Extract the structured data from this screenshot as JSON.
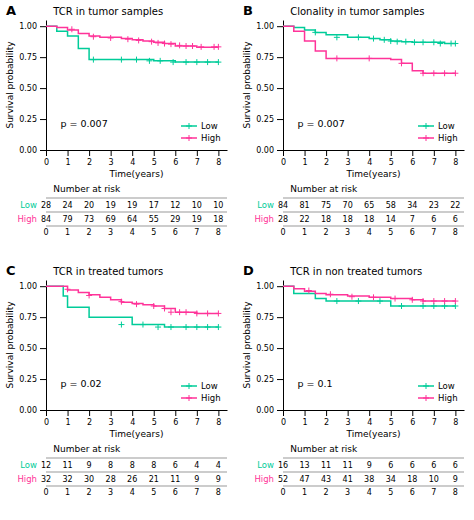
{
  "chart_data": [
    {
      "type": "step",
      "panel_label": "A",
      "title": "TCR in tumor samples",
      "annotations": [
        "p = 0.007"
      ],
      "xlabel": "Time(years)",
      "ylabel": "Survival probability",
      "xlim": [
        0,
        8.4
      ],
      "xticks": [
        0,
        1,
        2,
        3,
        4,
        5,
        6,
        7,
        8
      ],
      "ylim": [
        0.0,
        1.05
      ],
      "yticks": [
        {
          "value": 0.0,
          "label": "0.00"
        },
        {
          "value": 0.25,
          "label": "0.25"
        },
        {
          "value": 0.5,
          "label": "0.50"
        },
        {
          "value": 0.75,
          "label": "0.75"
        },
        {
          "value": 1.0,
          "label": "1.00"
        }
      ],
      "grid": false,
      "legend": "lower right",
      "series": [
        {
          "name": "Low",
          "color": "#00CC99",
          "marker": "plus",
          "x": [
            0,
            0.5,
            1.0,
            1.5,
            2.0,
            3.0,
            4.0,
            5.0,
            5.5,
            6.0,
            7.0,
            8.0
          ],
          "values": [
            1.0,
            0.96,
            0.92,
            0.82,
            0.73,
            0.73,
            0.73,
            0.72,
            0.72,
            0.71,
            0.71,
            0.71
          ],
          "censor_x": [
            2.2,
            3.5,
            4.2,
            4.8,
            5.3,
            5.9,
            6.5,
            7.0,
            7.5,
            8.0
          ],
          "censor_values": [
            0.73,
            0.73,
            0.73,
            0.72,
            0.72,
            0.71,
            0.71,
            0.71,
            0.71,
            0.71
          ]
        },
        {
          "name": "High",
          "color": "#FF3399",
          "marker": "plus",
          "x": [
            0,
            0.5,
            1.0,
            1.5,
            2.0,
            2.5,
            3.5,
            4.0,
            4.5,
            5.0,
            5.5,
            6.0,
            6.5,
            7.0,
            7.5,
            8.0
          ],
          "values": [
            1.0,
            0.99,
            0.97,
            0.94,
            0.92,
            0.91,
            0.9,
            0.89,
            0.88,
            0.87,
            0.86,
            0.84,
            0.84,
            0.83,
            0.83,
            0.83
          ],
          "censor_x": [
            1.2,
            2.2,
            3.0,
            3.8,
            4.3,
            4.9,
            5.2,
            5.5,
            5.8,
            6.2,
            6.5,
            6.8,
            7.2,
            7.8,
            8.0
          ],
          "censor_values": [
            0.975,
            0.915,
            0.905,
            0.895,
            0.885,
            0.875,
            0.865,
            0.86,
            0.855,
            0.845,
            0.84,
            0.84,
            0.833,
            0.833,
            0.833
          ]
        }
      ],
      "risk_table": {
        "title": "Number at risk",
        "x": [
          0,
          1,
          2,
          3,
          4,
          5,
          6,
          7,
          8
        ],
        "rows": [
          {
            "name": "Low",
            "color": "#00CC99",
            "values": [
              28,
              24,
              20,
              19,
              19,
              17,
              12,
              10,
              10
            ]
          },
          {
            "name": "High",
            "color": "#FF3399",
            "values": [
              84,
              79,
              73,
              69,
              64,
              55,
              29,
              19,
              18
            ]
          }
        ]
      }
    },
    {
      "type": "step",
      "panel_label": "B",
      "title": "Clonality in tumor samples",
      "annotations": [
        "p = 0.007"
      ],
      "xlabel": "Time(years)",
      "ylabel": "Survival probability",
      "xlim": [
        0,
        8.4
      ],
      "xticks": [
        0,
        1,
        2,
        3,
        4,
        5,
        6,
        7,
        8
      ],
      "ylim": [
        0.0,
        1.05
      ],
      "yticks": [
        {
          "value": 0.0,
          "label": "0.00"
        },
        {
          "value": 0.25,
          "label": "0.25"
        },
        {
          "value": 0.5,
          "label": "0.50"
        },
        {
          "value": 0.75,
          "label": "0.75"
        },
        {
          "value": 1.0,
          "label": "1.00"
        }
      ],
      "grid": false,
      "legend": "lower right",
      "series": [
        {
          "name": "Low",
          "color": "#00CC99",
          "marker": "plus",
          "x": [
            0,
            0.5,
            1.0,
            1.5,
            2.0,
            3.0,
            4.0,
            4.5,
            5.0,
            5.5,
            6.0,
            7.0,
            7.5,
            8.0
          ],
          "values": [
            1.0,
            0.99,
            0.97,
            0.95,
            0.93,
            0.91,
            0.9,
            0.89,
            0.88,
            0.875,
            0.87,
            0.87,
            0.86,
            0.86
          ],
          "censor_x": [
            1.5,
            2.5,
            3.5,
            4.2,
            4.7,
            5.0,
            5.3,
            5.7,
            6.1,
            6.5,
            7.0,
            7.3,
            7.8,
            8.0
          ],
          "censor_values": [
            0.95,
            0.91,
            0.91,
            0.9,
            0.89,
            0.88,
            0.875,
            0.875,
            0.87,
            0.87,
            0.87,
            0.86,
            0.86,
            0.86
          ]
        },
        {
          "name": "High",
          "color": "#FF3399",
          "marker": "plus",
          "x": [
            0,
            0.5,
            1.0,
            1.5,
            2.0,
            2.5,
            3.5,
            4.5,
            5.0,
            5.5,
            6.0,
            6.5,
            7.0,
            7.5,
            8.0
          ],
          "values": [
            1.0,
            0.96,
            0.88,
            0.8,
            0.74,
            0.74,
            0.74,
            0.74,
            0.73,
            0.7,
            0.64,
            0.62,
            0.62,
            0.62,
            0.62
          ],
          "censor_x": [
            2.5,
            4.0,
            5.5,
            6.5,
            7.0,
            7.5,
            8.0
          ],
          "censor_values": [
            0.74,
            0.74,
            0.7,
            0.62,
            0.62,
            0.62,
            0.62
          ]
        }
      ],
      "risk_table": {
        "title": "Number at risk",
        "x": [
          0,
          1,
          2,
          3,
          4,
          5,
          6,
          7,
          8
        ],
        "rows": [
          {
            "name": "Low",
            "color": "#00CC99",
            "values": [
              84,
              81,
              75,
              70,
              65,
              58,
              34,
              23,
              22
            ]
          },
          {
            "name": "High",
            "color": "#FF3399",
            "values": [
              28,
              22,
              18,
              18,
              18,
              14,
              7,
              6,
              6
            ]
          }
        ]
      }
    },
    {
      "type": "step",
      "panel_label": "C",
      "title": "TCR in treated tumors",
      "annotations": [
        "p = 0.02"
      ],
      "xlabel": "Time(years)",
      "ylabel": "Survival probability",
      "xlim": [
        0,
        8.4
      ],
      "xticks": [
        0,
        1,
        2,
        3,
        4,
        5,
        6,
        7,
        8
      ],
      "ylim": [
        0.0,
        1.05
      ],
      "yticks": [
        {
          "value": 0.0,
          "label": "0.00"
        },
        {
          "value": 0.25,
          "label": "0.25"
        },
        {
          "value": 0.5,
          "label": "0.50"
        },
        {
          "value": 0.75,
          "label": "0.75"
        },
        {
          "value": 1.0,
          "label": "1.00"
        }
      ],
      "grid": false,
      "legend": "lower right",
      "series": [
        {
          "name": "Low",
          "color": "#00CC99",
          "marker": "plus",
          "x": [
            0,
            0.8,
            1.0,
            1.5,
            2.0,
            3.0,
            4.0,
            5.0,
            5.5,
            6.0,
            7.0,
            7.5,
            8.0
          ],
          "values": [
            1.0,
            0.92,
            0.83,
            0.83,
            0.75,
            0.75,
            0.69,
            0.69,
            0.67,
            0.67,
            0.67,
            0.67,
            0.67
          ],
          "censor_x": [
            3.5,
            4.5,
            5.2,
            5.8,
            6.5,
            7.0,
            7.5,
            8.0
          ],
          "censor_values": [
            0.69,
            0.69,
            0.67,
            0.67,
            0.67,
            0.67,
            0.67,
            0.67
          ]
        },
        {
          "name": "High",
          "color": "#FF3399",
          "marker": "plus",
          "x": [
            0,
            0.3,
            1.0,
            1.5,
            2.0,
            2.5,
            3.0,
            3.5,
            4.0,
            4.5,
            5.0,
            5.5,
            6.0,
            6.5,
            7.0,
            7.5,
            8.0
          ],
          "values": [
            1.0,
            1.0,
            0.97,
            0.95,
            0.93,
            0.91,
            0.89,
            0.87,
            0.86,
            0.85,
            0.84,
            0.82,
            0.79,
            0.79,
            0.78,
            0.78,
            0.78
          ],
          "censor_x": [
            1.0,
            2.0,
            3.5,
            4.2,
            5.0,
            5.5,
            5.8,
            6.2,
            6.5,
            7.0,
            7.5,
            8.0
          ],
          "censor_values": [
            0.975,
            0.925,
            0.875,
            0.855,
            0.84,
            0.82,
            0.79,
            0.79,
            0.79,
            0.78,
            0.78,
            0.78
          ]
        }
      ],
      "risk_table": {
        "title": "Number at risk",
        "x": [
          0,
          1,
          2,
          3,
          4,
          5,
          6,
          7,
          8
        ],
        "rows": [
          {
            "name": "Low",
            "color": "#00CC99",
            "values": [
              12,
              11,
              9,
              8,
              8,
              8,
              6,
              4,
              4
            ]
          },
          {
            "name": "High",
            "color": "#FF3399",
            "values": [
              32,
              32,
              30,
              28,
              26,
              21,
              11,
              9,
              9
            ]
          }
        ]
      }
    },
    {
      "type": "step",
      "panel_label": "D",
      "title": "TCR in non treated tumors",
      "annotations": [
        "p = 0.1"
      ],
      "xlabel": "Time(years)",
      "ylabel": "Survival probability",
      "xlim": [
        0,
        8.4
      ],
      "xticks": [
        0,
        1,
        2,
        3,
        4,
        5,
        6,
        7,
        8
      ],
      "ylim": [
        0.0,
        1.05
      ],
      "yticks": [
        {
          "value": 0.0,
          "label": "0.00"
        },
        {
          "value": 0.25,
          "label": "0.25"
        },
        {
          "value": 0.5,
          "label": "0.50"
        },
        {
          "value": 0.75,
          "label": "0.75"
        },
        {
          "value": 1.0,
          "label": "1.00"
        }
      ],
      "grid": false,
      "legend": "lower right",
      "series": [
        {
          "name": "Low",
          "color": "#00CC99",
          "marker": "plus",
          "x": [
            0,
            0.5,
            1.0,
            1.5,
            2.0,
            3.0,
            4.0,
            5.0,
            6.0,
            7.0,
            8.0
          ],
          "values": [
            1.0,
            0.94,
            0.94,
            0.9,
            0.88,
            0.88,
            0.88,
            0.84,
            0.84,
            0.84,
            0.84
          ],
          "censor_x": [
            2.5,
            3.5,
            4.5,
            5.5,
            6.5,
            7.0,
            7.5,
            8.0
          ],
          "censor_values": [
            0.88,
            0.88,
            0.88,
            0.84,
            0.84,
            0.84,
            0.84,
            0.84
          ]
        },
        {
          "name": "High",
          "color": "#FF3399",
          "marker": "plus",
          "x": [
            0,
            0.5,
            1.0,
            1.5,
            2.0,
            3.0,
            4.0,
            5.0,
            6.0,
            6.5,
            7.0,
            7.5,
            8.0
          ],
          "values": [
            1.0,
            0.98,
            0.96,
            0.94,
            0.93,
            0.92,
            0.91,
            0.9,
            0.89,
            0.88,
            0.88,
            0.88,
            0.88
          ],
          "censor_x": [
            1.2,
            2.2,
            3.2,
            4.2,
            5.2,
            6.0,
            6.5,
            7.0,
            7.5,
            8.0
          ],
          "censor_values": [
            0.965,
            0.935,
            0.915,
            0.91,
            0.9,
            0.89,
            0.88,
            0.88,
            0.88,
            0.88
          ]
        }
      ],
      "risk_table": {
        "title": "Number at risk",
        "x": [
          0,
          1,
          2,
          3,
          4,
          5,
          6,
          7,
          8
        ],
        "rows": [
          {
            "name": "Low",
            "color": "#00CC99",
            "values": [
              16,
              13,
              11,
              11,
              9,
              6,
              6,
              6,
              6
            ]
          },
          {
            "name": "High",
            "color": "#FF3399",
            "values": [
              52,
              47,
              43,
              41,
              38,
              34,
              18,
              10,
              9
            ]
          }
        ]
      }
    }
  ]
}
